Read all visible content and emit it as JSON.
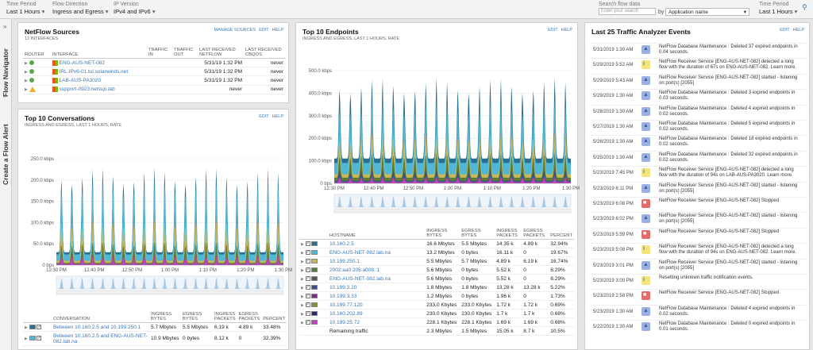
{
  "topbar": {
    "time_period": {
      "label": "Time Period",
      "value": "Last 1 Hours"
    },
    "flow_direction": {
      "label": "Flow Direction",
      "value": "Ingress and Egress"
    },
    "ip_version": {
      "label": "IP Version",
      "value": "IPv4 and IPv6"
    },
    "search": {
      "label": "Search flow data",
      "placeholder": "Enter your search",
      "by": "by",
      "by_value": "Application name"
    },
    "time_period_right": {
      "label": "Time Period",
      "value": "Last 1 Hours"
    }
  },
  "sidebar": {
    "flow_navigator": "Flow Navigator",
    "create_flow_alert": "Create a Flow Alert"
  },
  "netflow": {
    "title": "NetFlow Sources",
    "subtitle": "12 INTERFACES",
    "links": [
      "MANAGE SOURCES",
      "EDIT",
      "HELP"
    ],
    "columns": [
      "ROUTER",
      "INTERFACE",
      "TRAFFIC IN",
      "TRAFFIC OUT",
      "LAST RECEIVED NETFLOW",
      "LAST RECEIVED CBQOS"
    ],
    "rows": [
      {
        "interface": "ENG-AUS-NET-082",
        "netflow": "5/31/19 1:32 PM",
        "cbqos": "never",
        "status": "up"
      },
      {
        "interface": "IRL-IPv6-01.tul.solarwinds.net",
        "netflow": "5/31/19 1:32 PM",
        "cbqos": "never",
        "status": "up"
      },
      {
        "interface": "LAB-AUS-PA3020",
        "netflow": "5/31/19 1:32 PM",
        "cbqos": "never",
        "status": "up"
      },
      {
        "interface": "support-0923.netsup.lab",
        "netflow": "never",
        "cbqos": "never",
        "status": "warn"
      }
    ]
  },
  "conversations": {
    "title": "Top 10 Conversations",
    "subtitle": "INGRESS AND EGRESS, LAST 1 HOURS, RATE",
    "links": [
      "EDIT",
      "HELP"
    ],
    "chart_data": {
      "type": "area",
      "ylabel": "kbps",
      "yticks": [
        "250.0 kbps",
        "200.0 kbps",
        "150.0 kbps",
        "100.0 kbps",
        "50.0 kbps",
        "0 bps"
      ],
      "xticks": [
        "12:30 PM",
        "12:40 PM",
        "12:50 PM",
        "1:00 PM",
        "1:10 PM",
        "1:20 PM",
        "1:30 PM"
      ],
      "ylim": [
        0,
        260
      ]
    },
    "columns": [
      "CONVERSATION",
      "INGRESS BYTES",
      "EGRESS BYTES",
      "INGRESS PACKETS",
      "EGRESS PACKETS",
      "PERCENT"
    ],
    "rows": [
      {
        "conversation": "Between 10.160.2.5 and 10.199.250.1",
        "in_bytes": "5.7 Mbytes",
        "out_bytes": "5.5 Mbytes",
        "in_pk": "6.19 k",
        "out_pk": "4.89 k",
        "pct": "33.48%",
        "color": "#2a6f8f"
      },
      {
        "conversation": "Between 10.160.2.5 and ENG-AUS-NET-082.lab.na",
        "in_bytes": "10.9 Mbytes",
        "out_bytes": "0 bytes",
        "in_pk": "8.12 k",
        "out_pk": "0",
        "pct": "32.39%",
        "color": "#4fb7d8"
      }
    ]
  },
  "endpoints": {
    "title": "Top 10 Endpoints",
    "subtitle": "INGRESS AND EGRESS, LAST 1 HOURS, RATE",
    "links": [
      "EDIT",
      "HELP"
    ],
    "chart_data": {
      "type": "area",
      "ylabel": "kbps",
      "yticks": [
        "500.0 kbps",
        "400.0 kbps",
        "300.0 kbps",
        "200.0 kbps",
        "100.0 kbps",
        "0 bps"
      ],
      "xticks": [
        "12:30 PM",
        "12:40 PM",
        "12:50 PM",
        "1:00 PM",
        "1:10 PM",
        "1:20 PM",
        "1:30 PM"
      ],
      "ylim": [
        0,
        520
      ]
    },
    "columns": [
      "HOSTNAME",
      "INGRESS BYTES",
      "EGRESS BYTES",
      "INGRESS PACKETS",
      "EGRESS PACKETS",
      "PERCENT"
    ],
    "rows": [
      {
        "host": "10.160.2.5",
        "ib": "16.6 Mbytes",
        "eb": "5.5 Mbytes",
        "ip": "14.35 k",
        "ep": "4.89 k",
        "pct": "32.94%",
        "color": "#2a6f8f"
      },
      {
        "host": "ENG-AUS-NET-082.lab.na",
        "ib": "13.2 Mbytes",
        "eb": "0 bytes",
        "ip": "16.11 k",
        "ep": "0",
        "pct": "19.67%",
        "color": "#4fb7d8"
      },
      {
        "host": "10.199.250.1",
        "ib": "5.5 Mbytes",
        "eb": "5.7 Mbytes",
        "ip": "4.89 k",
        "ep": "6.19 k",
        "pct": "16.74%",
        "color": "#c8b85a"
      },
      {
        "host": "2002:aa0:205:a008::1",
        "ib": "5.6 Mbytes",
        "eb": "0 bytes",
        "ip": "5.52 k",
        "ep": "0",
        "pct": "8.29%",
        "color": "#5a7a3a"
      },
      {
        "host": "ENG-AUS-NET-082.lab.na",
        "ib": "5.6 Mbytes",
        "eb": "0 bytes",
        "ip": "5.52 k",
        "ep": "0",
        "pct": "8.29%",
        "color": "#555555"
      },
      {
        "host": "10.199.3.20",
        "ib": "1.8 Mbytes",
        "eb": "1.8 Mbytes",
        "ip": "13.28 k",
        "ep": "13.28 k",
        "pct": "5.22%",
        "color": "#3a4f8f"
      },
      {
        "host": "10.199.3.33",
        "ib": "1.2 Mbytes",
        "eb": "0 bytes",
        "ip": "1.96 k",
        "ep": "0",
        "pct": "1.73%",
        "color": "#7a2a8f"
      },
      {
        "host": "10.199.77.120",
        "ib": "233.0 Kbytes",
        "eb": "233.0 Kbytes",
        "ip": "1.72 k",
        "ep": "1.72 k",
        "pct": "0.69%",
        "color": "#8f8f2a"
      },
      {
        "host": "10.160.202.89",
        "ib": "230.0 Kbytes",
        "eb": "230.0 Kbytes",
        "ip": "1.7 k",
        "ep": "1.7 k",
        "pct": "0.68%",
        "color": "#2a2a6f"
      },
      {
        "host": "10.199.25.72",
        "ib": "228.1 Kbytes",
        "eb": "228.1 Kbytes",
        "ip": "1.69 k",
        "ep": "1.69 k",
        "pct": "0.68%",
        "color": "#c040c0"
      }
    ],
    "remaining": {
      "label": "Remaining traffic",
      "ib": "2.3 Mbytes",
      "eb": "1.5 Mbytes",
      "ip": "15.05 k",
      "ep": "8.7 k",
      "pct": "10.5%"
    }
  },
  "events": {
    "title": "Last 25 Traffic Analyzer Events",
    "links": [
      "EDIT",
      "HELP"
    ],
    "items": [
      {
        "time": "5/31/2019 1:30 AM",
        "type": "db",
        "msg": "NetFlow Database Maintenance : Deleted 37 expired endpoints in 0.04 seconds."
      },
      {
        "time": "5/29/2019 5:52 AM",
        "type": "info",
        "msg": "NetFlow Receiver Service [ENG-AUS-NET-082] detected a long flow with the duration of 67s on ENG-AUS-NET-082. Learn more."
      },
      {
        "time": "5/29/2019 5:43 AM",
        "type": "db",
        "msg": "NetFlow Receiver Service [ENG-AUS-NET-082] started - listening on port(s) [2055]"
      },
      {
        "time": "5/29/2019 1:30 AM",
        "type": "db",
        "msg": "NetFlow Database Maintenance : Deleted 3 expired endpoints in 0.03 seconds."
      },
      {
        "time": "5/28/2019 1:30 AM",
        "type": "db",
        "msg": "NetFlow Database Maintenance : Deleted 4 expired endpoints in 0.02 seconds."
      },
      {
        "time": "5/27/2019 1:30 AM",
        "type": "db",
        "msg": "NetFlow Database Maintenance : Deleted 5 expired endpoints in 0.02 seconds."
      },
      {
        "time": "5/26/2019 1:30 AM",
        "type": "db",
        "msg": "NetFlow Database Maintenance : Deleted 18 expired endpoints in 0.02 seconds."
      },
      {
        "time": "5/25/2019 1:30 AM",
        "type": "db",
        "msg": "NetFlow Database Maintenance : Deleted 32 expired endpoints in 0.02 seconds."
      },
      {
        "time": "5/23/2019 7:45 PM",
        "type": "info",
        "msg": "NetFlow Receiver Service [ENG-AUS-NET-082] detected a long flow with the duration of 94s on LAB-AUS-PA3020. Learn more."
      },
      {
        "time": "5/23/2019 6:11 PM",
        "type": "db",
        "msg": "NetFlow Receiver Service [ENG-AUS-NET-082] started - listening on port(s) [2055]"
      },
      {
        "time": "5/23/2019 6:08 PM",
        "type": "stop",
        "msg": "NetFlow Receiver Service [ENG-AUS-NET-082] Stopped"
      },
      {
        "time": "5/23/2019 6:02 PM",
        "type": "db",
        "msg": "NetFlow Receiver Service [ENG-AUS-NET-082] started - listening on port(s) [2055]"
      },
      {
        "time": "5/23/2019 5:59 PM",
        "type": "stop",
        "msg": "NetFlow Receiver Service [ENG-AUS-NET-082] Stopped"
      },
      {
        "time": "5/23/2019 5:08 PM",
        "type": "info",
        "msg": "NetFlow Receiver Service [ENG-AUS-NET-082] detected a long flow with the duration of 94s on ENG-AUS-NET-082. Learn more."
      },
      {
        "time": "5/23/2019 3:01 PM",
        "type": "db",
        "msg": "NetFlow Receiver Service [ENG-AUS-NET-082] started - listening on port(s) [2055]"
      },
      {
        "time": "5/23/2019 3:00 PM",
        "type": "info",
        "msg": "Resetting unknown traffic notification events."
      },
      {
        "time": "5/23/2019 2:58 PM",
        "type": "stop",
        "msg": "NetFlow Receiver Service [ENG-AUS-NET-082] Stopped"
      },
      {
        "time": "5/23/2019 1:30 AM",
        "type": "db",
        "msg": "NetFlow Database Maintenance : Deleted 4 expired endpoints in 0.02 seconds."
      },
      {
        "time": "5/22/2019 1:30 AM",
        "type": "db",
        "msg": "NetFlow Database Maintenance : Deleted 0 expired endpoints in 0.01 seconds."
      }
    ]
  }
}
